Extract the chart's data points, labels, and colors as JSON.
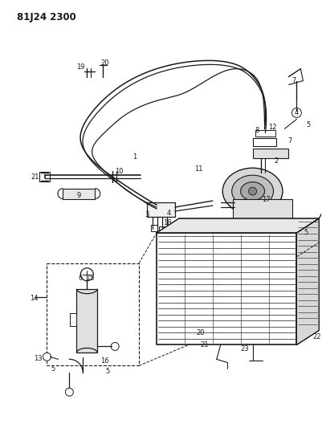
{
  "title": "81J24 2300",
  "bg_color": "#ffffff",
  "line_color": "#1a1a1a",
  "title_fontsize": 8.5,
  "label_fontsize": 6.0,
  "figsize": [
    4.01,
    5.33
  ],
  "dpi": 100
}
